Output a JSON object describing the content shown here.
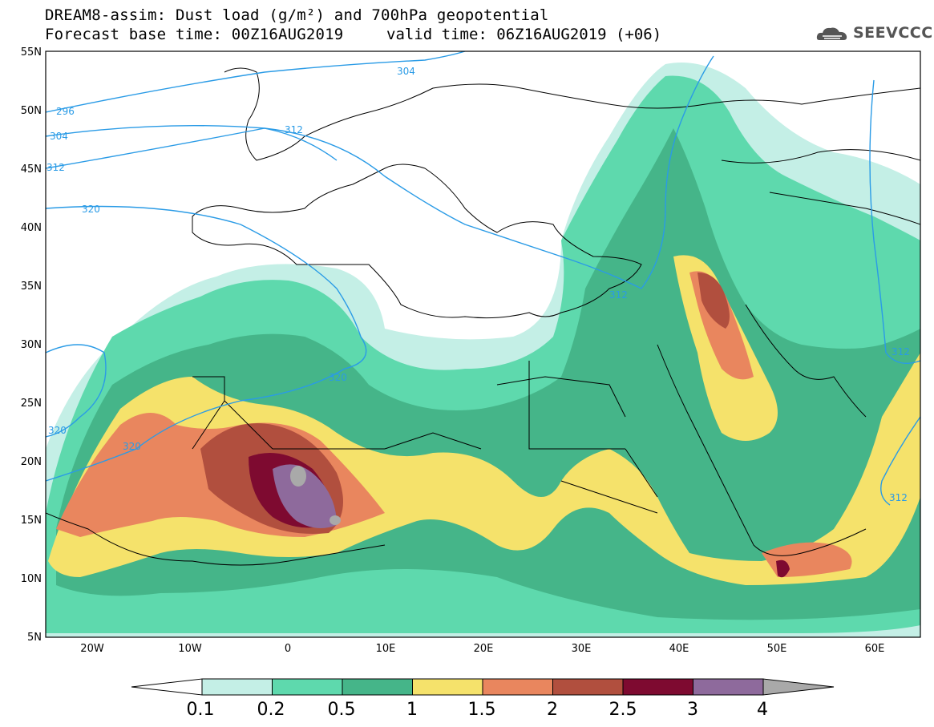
{
  "header": {
    "title_line1": "DREAM8-assim: Dust load (g/m²) and 700hPa geopotential",
    "title_line2a": "Forecast base time: 00Z16AUG2019",
    "title_line2b": "valid time: 06Z16AUG2019 (+06)",
    "logo_text": "SEEVCCC"
  },
  "map": {
    "lat_labels": [
      "55N",
      "50N",
      "45N",
      "40N",
      "35N",
      "30N",
      "25N",
      "20N",
      "15N",
      "10N",
      "5N"
    ],
    "lon_labels": [
      "20W",
      "10W",
      "0",
      "10E",
      "20E",
      "30E",
      "40E",
      "50E",
      "60E"
    ],
    "contour_labels": [
      "296",
      "304",
      "304",
      "312",
      "312",
      "320",
      "320",
      "320",
      "320",
      "312",
      "312",
      "312"
    ],
    "contour_color": "#2a9be6"
  },
  "colorbar": {
    "labels": [
      "0.1",
      "0.2",
      "0.5",
      "1",
      "1.5",
      "2",
      "2.5",
      "3",
      "4"
    ],
    "colors": [
      "#ffffff",
      "#c4efe6",
      "#5ed9ad",
      "#45b589",
      "#f5e26b",
      "#e9865e",
      "#b14f3e",
      "#7e0a30",
      "#8e6a9c",
      "#a9a9a9"
    ]
  }
}
